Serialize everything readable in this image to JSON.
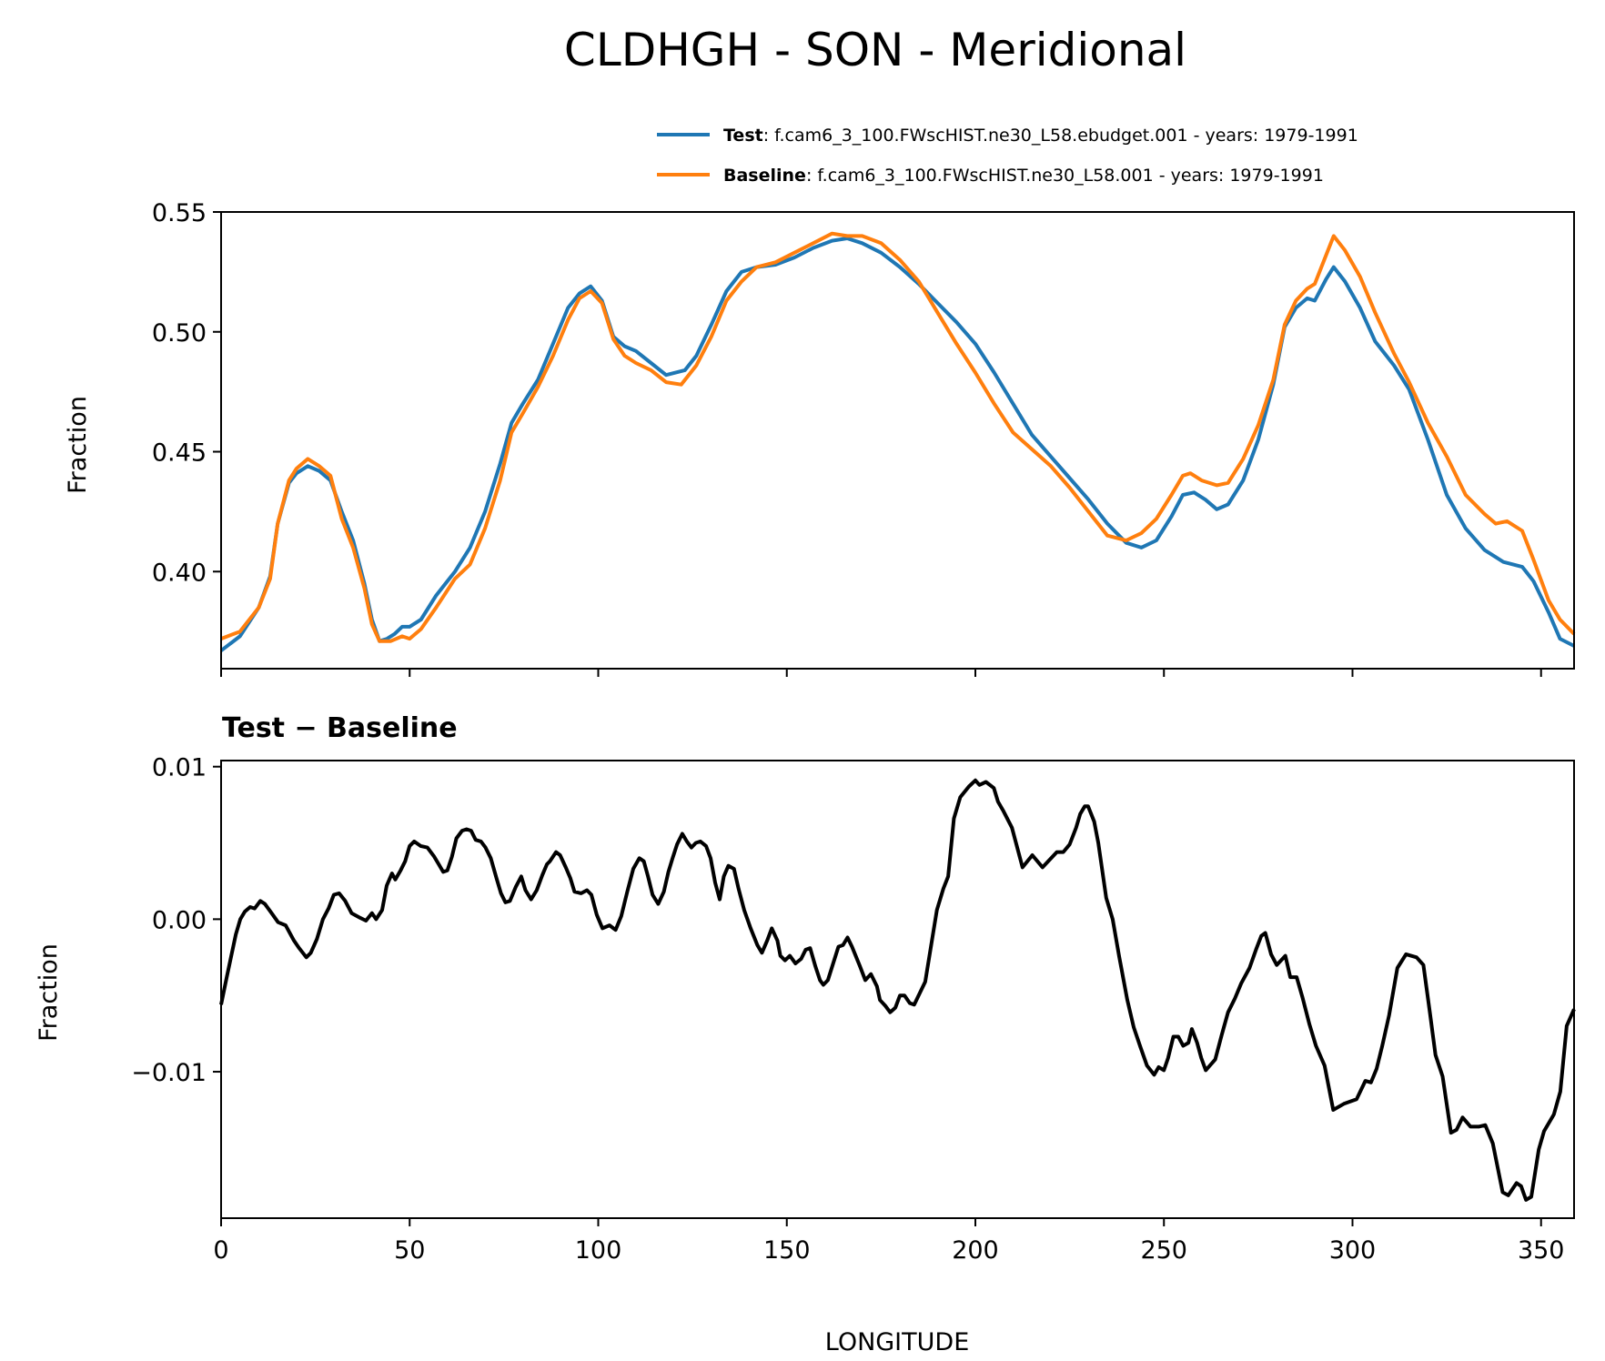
{
  "title": "CLDHGH - SON - Meridional",
  "colors": {
    "test": "#1f77b4",
    "baseline": "#ff7f0e",
    "difference": "#000000"
  },
  "legend": [
    {
      "bold": "Test",
      "text": ": f.cam6_3_100.FWscHIST.ne30_L58.ebudget.001 - years: 1979-1991",
      "color": "#1f77b4"
    },
    {
      "bold": "Baseline",
      "text": ": f.cam6_3_100.FWscHIST.ne30_L58.001 - years: 1979-1991",
      "color": "#ff7f0e"
    }
  ],
  "chart_data": [
    {
      "type": "line",
      "title": "",
      "xlabel": "",
      "ylabel": "Fraction",
      "xlim": [
        0,
        358.75
      ],
      "ylim": [
        0.3595,
        0.55
      ],
      "xticks": [
        0,
        50,
        100,
        150,
        200,
        250,
        300,
        350
      ],
      "yticks": [
        "0.40",
        "0.45",
        "0.50",
        "0.55"
      ],
      "legend_position": "top-right (above axes)",
      "grid": false,
      "series": [
        {
          "name": "Test",
          "color": "#1f77b4",
          "x": [
            0,
            5,
            10,
            13,
            15,
            18,
            20,
            23,
            26,
            29,
            32,
            35,
            38,
            40,
            42,
            44,
            46,
            48,
            50,
            53,
            57,
            62,
            66,
            70,
            74,
            77,
            80,
            84,
            88,
            92,
            95,
            98,
            101,
            104,
            107,
            110,
            114,
            118,
            123,
            126,
            130,
            134,
            138,
            142,
            147,
            152,
            157,
            162,
            166,
            170,
            175,
            180,
            185,
            190,
            195,
            200,
            205,
            210,
            215,
            220,
            225,
            230,
            235,
            240,
            244,
            248,
            252,
            255,
            258,
            261,
            264,
            267,
            271,
            275,
            279,
            282,
            285,
            288,
            290,
            293,
            295,
            298,
            302,
            306,
            311,
            315,
            320,
            325,
            330,
            335,
            340,
            345,
            348,
            352,
            355,
            358.75
          ],
          "y": [
            0.367,
            0.373,
            0.385,
            0.398,
            0.42,
            0.437,
            0.441,
            0.444,
            0.442,
            0.438,
            0.425,
            0.413,
            0.395,
            0.38,
            0.371,
            0.372,
            0.374,
            0.377,
            0.377,
            0.38,
            0.39,
            0.4,
            0.41,
            0.425,
            0.445,
            0.462,
            0.47,
            0.48,
            0.495,
            0.51,
            0.516,
            0.519,
            0.513,
            0.498,
            0.494,
            0.492,
            0.487,
            0.482,
            0.484,
            0.49,
            0.503,
            0.517,
            0.525,
            0.527,
            0.528,
            0.531,
            0.535,
            0.538,
            0.539,
            0.537,
            0.533,
            0.527,
            0.52,
            0.512,
            0.504,
            0.495,
            0.483,
            0.47,
            0.457,
            0.448,
            0.439,
            0.43,
            0.42,
            0.412,
            0.41,
            0.413,
            0.423,
            0.432,
            0.433,
            0.43,
            0.426,
            0.428,
            0.438,
            0.455,
            0.478,
            0.502,
            0.51,
            0.514,
            0.513,
            0.522,
            0.527,
            0.521,
            0.51,
            0.496,
            0.486,
            0.476,
            0.455,
            0.432,
            0.418,
            0.409,
            0.404,
            0.402,
            0.396,
            0.383,
            0.372,
            0.369
          ]
        },
        {
          "name": "Baseline",
          "color": "#ff7f0e",
          "x": [
            0,
            5,
            10,
            13,
            15,
            18,
            20,
            23,
            26,
            29,
            32,
            35,
            38,
            40,
            42,
            45,
            48,
            50,
            53,
            57,
            62,
            66,
            70,
            74,
            77,
            80,
            84,
            88,
            92,
            95,
            98,
            101,
            104,
            107,
            110,
            114,
            118,
            122,
            126,
            130,
            134,
            138,
            142,
            147,
            152,
            157,
            162,
            166,
            170,
            175,
            180,
            185,
            190,
            195,
            200,
            205,
            210,
            215,
            220,
            225,
            230,
            235,
            240,
            244,
            248,
            252,
            255,
            257,
            260,
            264,
            267,
            271,
            275,
            279,
            282,
            285,
            288,
            290,
            293,
            295,
            298,
            302,
            306,
            311,
            315,
            320,
            325,
            330,
            335,
            338,
            341,
            345,
            348,
            352,
            355,
            358.75
          ],
          "y": [
            0.372,
            0.375,
            0.385,
            0.397,
            0.42,
            0.438,
            0.443,
            0.447,
            0.444,
            0.44,
            0.422,
            0.41,
            0.393,
            0.378,
            0.371,
            0.371,
            0.373,
            0.372,
            0.376,
            0.385,
            0.397,
            0.403,
            0.418,
            0.438,
            0.458,
            0.466,
            0.477,
            0.49,
            0.505,
            0.514,
            0.517,
            0.512,
            0.497,
            0.49,
            0.487,
            0.484,
            0.479,
            0.478,
            0.486,
            0.498,
            0.513,
            0.521,
            0.527,
            0.529,
            0.533,
            0.537,
            0.541,
            0.54,
            0.54,
            0.537,
            0.53,
            0.521,
            0.508,
            0.495,
            0.483,
            0.47,
            0.458,
            0.451,
            0.444,
            0.435,
            0.425,
            0.415,
            0.413,
            0.416,
            0.422,
            0.432,
            0.44,
            0.441,
            0.438,
            0.436,
            0.437,
            0.447,
            0.461,
            0.48,
            0.503,
            0.513,
            0.518,
            0.52,
            0.532,
            0.54,
            0.534,
            0.523,
            0.508,
            0.491,
            0.479,
            0.462,
            0.448,
            0.432,
            0.424,
            0.42,
            0.421,
            0.417,
            0.405,
            0.388,
            0.38,
            0.374
          ]
        }
      ]
    },
    {
      "type": "line",
      "title": "Test − Baseline",
      "xlabel": "LONGITUDE",
      "ylabel": "Fraction",
      "xlim": [
        0,
        358.75
      ],
      "ylim": [
        -0.0196,
        0.0104
      ],
      "xticks": [
        "0",
        "50",
        "100",
        "150",
        "200",
        "250",
        "300",
        "350"
      ],
      "yticks": [
        "0.01",
        "0.00",
        "−0.01"
      ],
      "grid": false,
      "series": [
        {
          "color": "#000000",
          "x": [
            0,
            1.5,
            2.7,
            3.9,
            5.1,
            6.3,
            7.7,
            8.9,
            10.4,
            11.6,
            13.4,
            15.1,
            17.1,
            19.3,
            20.7,
            22.6,
            23.8,
            25.4,
            27,
            28.5,
            29.9,
            31.3,
            32.9,
            34.6,
            36.8,
            38.4,
            40,
            41.1,
            42.7,
            43.9,
            45.3,
            46.2,
            47.6,
            48.8,
            50,
            51.2,
            52.9,
            54.7,
            56.5,
            57.7,
            58.9,
            60,
            61.2,
            62.4,
            63.9,
            65.1,
            66.3,
            67.5,
            68.9,
            70.1,
            71.5,
            73,
            74.2,
            75.4,
            76.6,
            78.1,
            79.6,
            80.7,
            82.2,
            83.7,
            85.2,
            86.4,
            87.2,
            88.8,
            89.9,
            91.4,
            92.6,
            93.7,
            95.5,
            97,
            98.2,
            99.6,
            101.1,
            103,
            104.6,
            106.1,
            107.7,
            109.3,
            110.9,
            112.1,
            113.2,
            114.4,
            115.9,
            117.4,
            118.6,
            119.7,
            120.9,
            122.3,
            123.5,
            124.7,
            125.9,
            127.1,
            128.6,
            129.8,
            131,
            132.2,
            133.3,
            134.5,
            136,
            137.2,
            138.7,
            140.4,
            142.2,
            143.4,
            144.8,
            146,
            147.5,
            148.3,
            149.5,
            150.8,
            152.3,
            153.8,
            155,
            156.2,
            157.6,
            158.8,
            159.7,
            160.9,
            162.3,
            163.7,
            164.9,
            166.1,
            167.3,
            169.4,
            170.8,
            172.3,
            173.9,
            174.7,
            176.2,
            177.4,
            178.8,
            180,
            181.2,
            182.6,
            183.8,
            186.7,
            189.8,
            191.5,
            192.8,
            194.3,
            196,
            198.3,
            200,
            201.1,
            202.8,
            204.9,
            206,
            207.4,
            209.7,
            212.5,
            215.1,
            217.8,
            221.6,
            223.3,
            225,
            226.7,
            227.8,
            229,
            229.9,
            231.5,
            232.6,
            234.7,
            236.4,
            238.1,
            240.3,
            242,
            243.8,
            245.5,
            247.4,
            248.6,
            250,
            251.1,
            252.5,
            253.8,
            255.1,
            256.5,
            257.4,
            258.8,
            259.9,
            261.1,
            263.6,
            265.3,
            267,
            268.8,
            270.5,
            272.7,
            274.4,
            275.8,
            276.9,
            278.4,
            279.9,
            282.2,
            283.5,
            285.2,
            286.7,
            288.6,
            290.3,
            292.6,
            294.9,
            297.7,
            301.1,
            303.4,
            304.9,
            306.4,
            307.9,
            309.7,
            311.9,
            314.2,
            317,
            318.8,
            320.5,
            322,
            323.9,
            326.1,
            327.6,
            329.2,
            331.3,
            333.5,
            335.2,
            337.2,
            339.8,
            341.3,
            343.5,
            344.7,
            346,
            347.4,
            349.4,
            350.8,
            353.4,
            355.1,
            356.8,
            358.75
          ],
          "y": [
            -0.0056,
            -0.0038,
            -0.0024,
            -0.001,
            0.0,
            0.0005,
            0.0008,
            0.0007,
            0.0012,
            0.001,
            0.0004,
            -0.0002,
            -0.0004,
            -0.0014,
            -0.0019,
            -0.0025,
            -0.0022,
            -0.0013,
            0.0,
            0.0007,
            0.0016,
            0.0017,
            0.0012,
            0.0004,
            0.0001,
            -0.0001,
            0.0004,
            0.0,
            0.0006,
            0.0022,
            0.003,
            0.0026,
            0.0032,
            0.0038,
            0.0048,
            0.0051,
            0.0048,
            0.0047,
            0.0041,
            0.0036,
            0.0031,
            0.0032,
            0.0041,
            0.0053,
            0.0058,
            0.0059,
            0.0058,
            0.0052,
            0.0051,
            0.0047,
            0.004,
            0.0027,
            0.0017,
            0.0011,
            0.0012,
            0.0021,
            0.0028,
            0.0019,
            0.0013,
            0.0019,
            0.0029,
            0.0036,
            0.0038,
            0.0044,
            0.0042,
            0.0034,
            0.0027,
            0.0018,
            0.0017,
            0.0019,
            0.0016,
            0.0003,
            -0.0006,
            -0.0004,
            -0.0007,
            0.0002,
            0.0018,
            0.0033,
            0.004,
            0.0038,
            0.0028,
            0.0016,
            0.001,
            0.0018,
            0.0031,
            0.004,
            0.0049,
            0.0056,
            0.0051,
            0.0047,
            0.005,
            0.0051,
            0.0048,
            0.004,
            0.0024,
            0.0013,
            0.0028,
            0.0035,
            0.0033,
            0.002,
            0.0006,
            -0.0006,
            -0.0017,
            -0.0022,
            -0.0014,
            -0.0006,
            -0.0014,
            -0.0024,
            -0.0027,
            -0.0024,
            -0.0029,
            -0.0026,
            -0.002,
            -0.0019,
            -0.0031,
            -0.004,
            -0.0043,
            -0.004,
            -0.0029,
            -0.0018,
            -0.0017,
            -0.0012,
            -0.0018,
            -0.0031,
            -0.004,
            -0.0036,
            -0.0044,
            -0.0053,
            -0.0057,
            -0.0061,
            -0.0058,
            -0.005,
            -0.005,
            -0.0055,
            -0.0056,
            -0.0041,
            0.0006,
            0.002,
            0.0028,
            0.0066,
            0.008,
            0.0087,
            0.0091,
            0.0088,
            0.009,
            0.0086,
            0.0077,
            0.0071,
            0.006,
            0.0034,
            0.0042,
            0.0034,
            0.0044,
            0.0044,
            0.0049,
            0.006,
            0.0069,
            0.0074,
            0.0074,
            0.0064,
            0.005,
            0.0014,
            0.0,
            -0.0024,
            -0.0053,
            -0.0071,
            -0.0084,
            -0.0096,
            -0.0102,
            -0.0097,
            -0.0099,
            -0.0091,
            -0.0077,
            -0.0077,
            -0.0083,
            -0.0081,
            -0.0072,
            -0.0081,
            -0.0091,
            -0.0099,
            -0.0092,
            -0.0076,
            -0.0061,
            -0.0052,
            -0.0042,
            -0.0032,
            -0.002,
            -0.0011,
            -0.0009,
            -0.0023,
            -0.003,
            -0.0024,
            -0.0038,
            -0.0038,
            -0.0051,
            -0.0069,
            -0.0083,
            -0.0096,
            -0.0125,
            -0.0121,
            -0.0118,
            -0.0106,
            -0.0107,
            -0.0098,
            -0.0083,
            -0.0063,
            -0.0032,
            -0.0023,
            -0.0025,
            -0.003,
            -0.0061,
            -0.0089,
            -0.0103,
            -0.014,
            -0.0138,
            -0.013,
            -0.0136,
            -0.0136,
            -0.0135,
            -0.0147,
            -0.0179,
            -0.0181,
            -0.0173,
            -0.0175,
            -0.0184,
            -0.0182,
            -0.0151,
            -0.0139,
            -0.0128,
            -0.0113,
            -0.007,
            -0.0059
          ]
        }
      ]
    }
  ]
}
